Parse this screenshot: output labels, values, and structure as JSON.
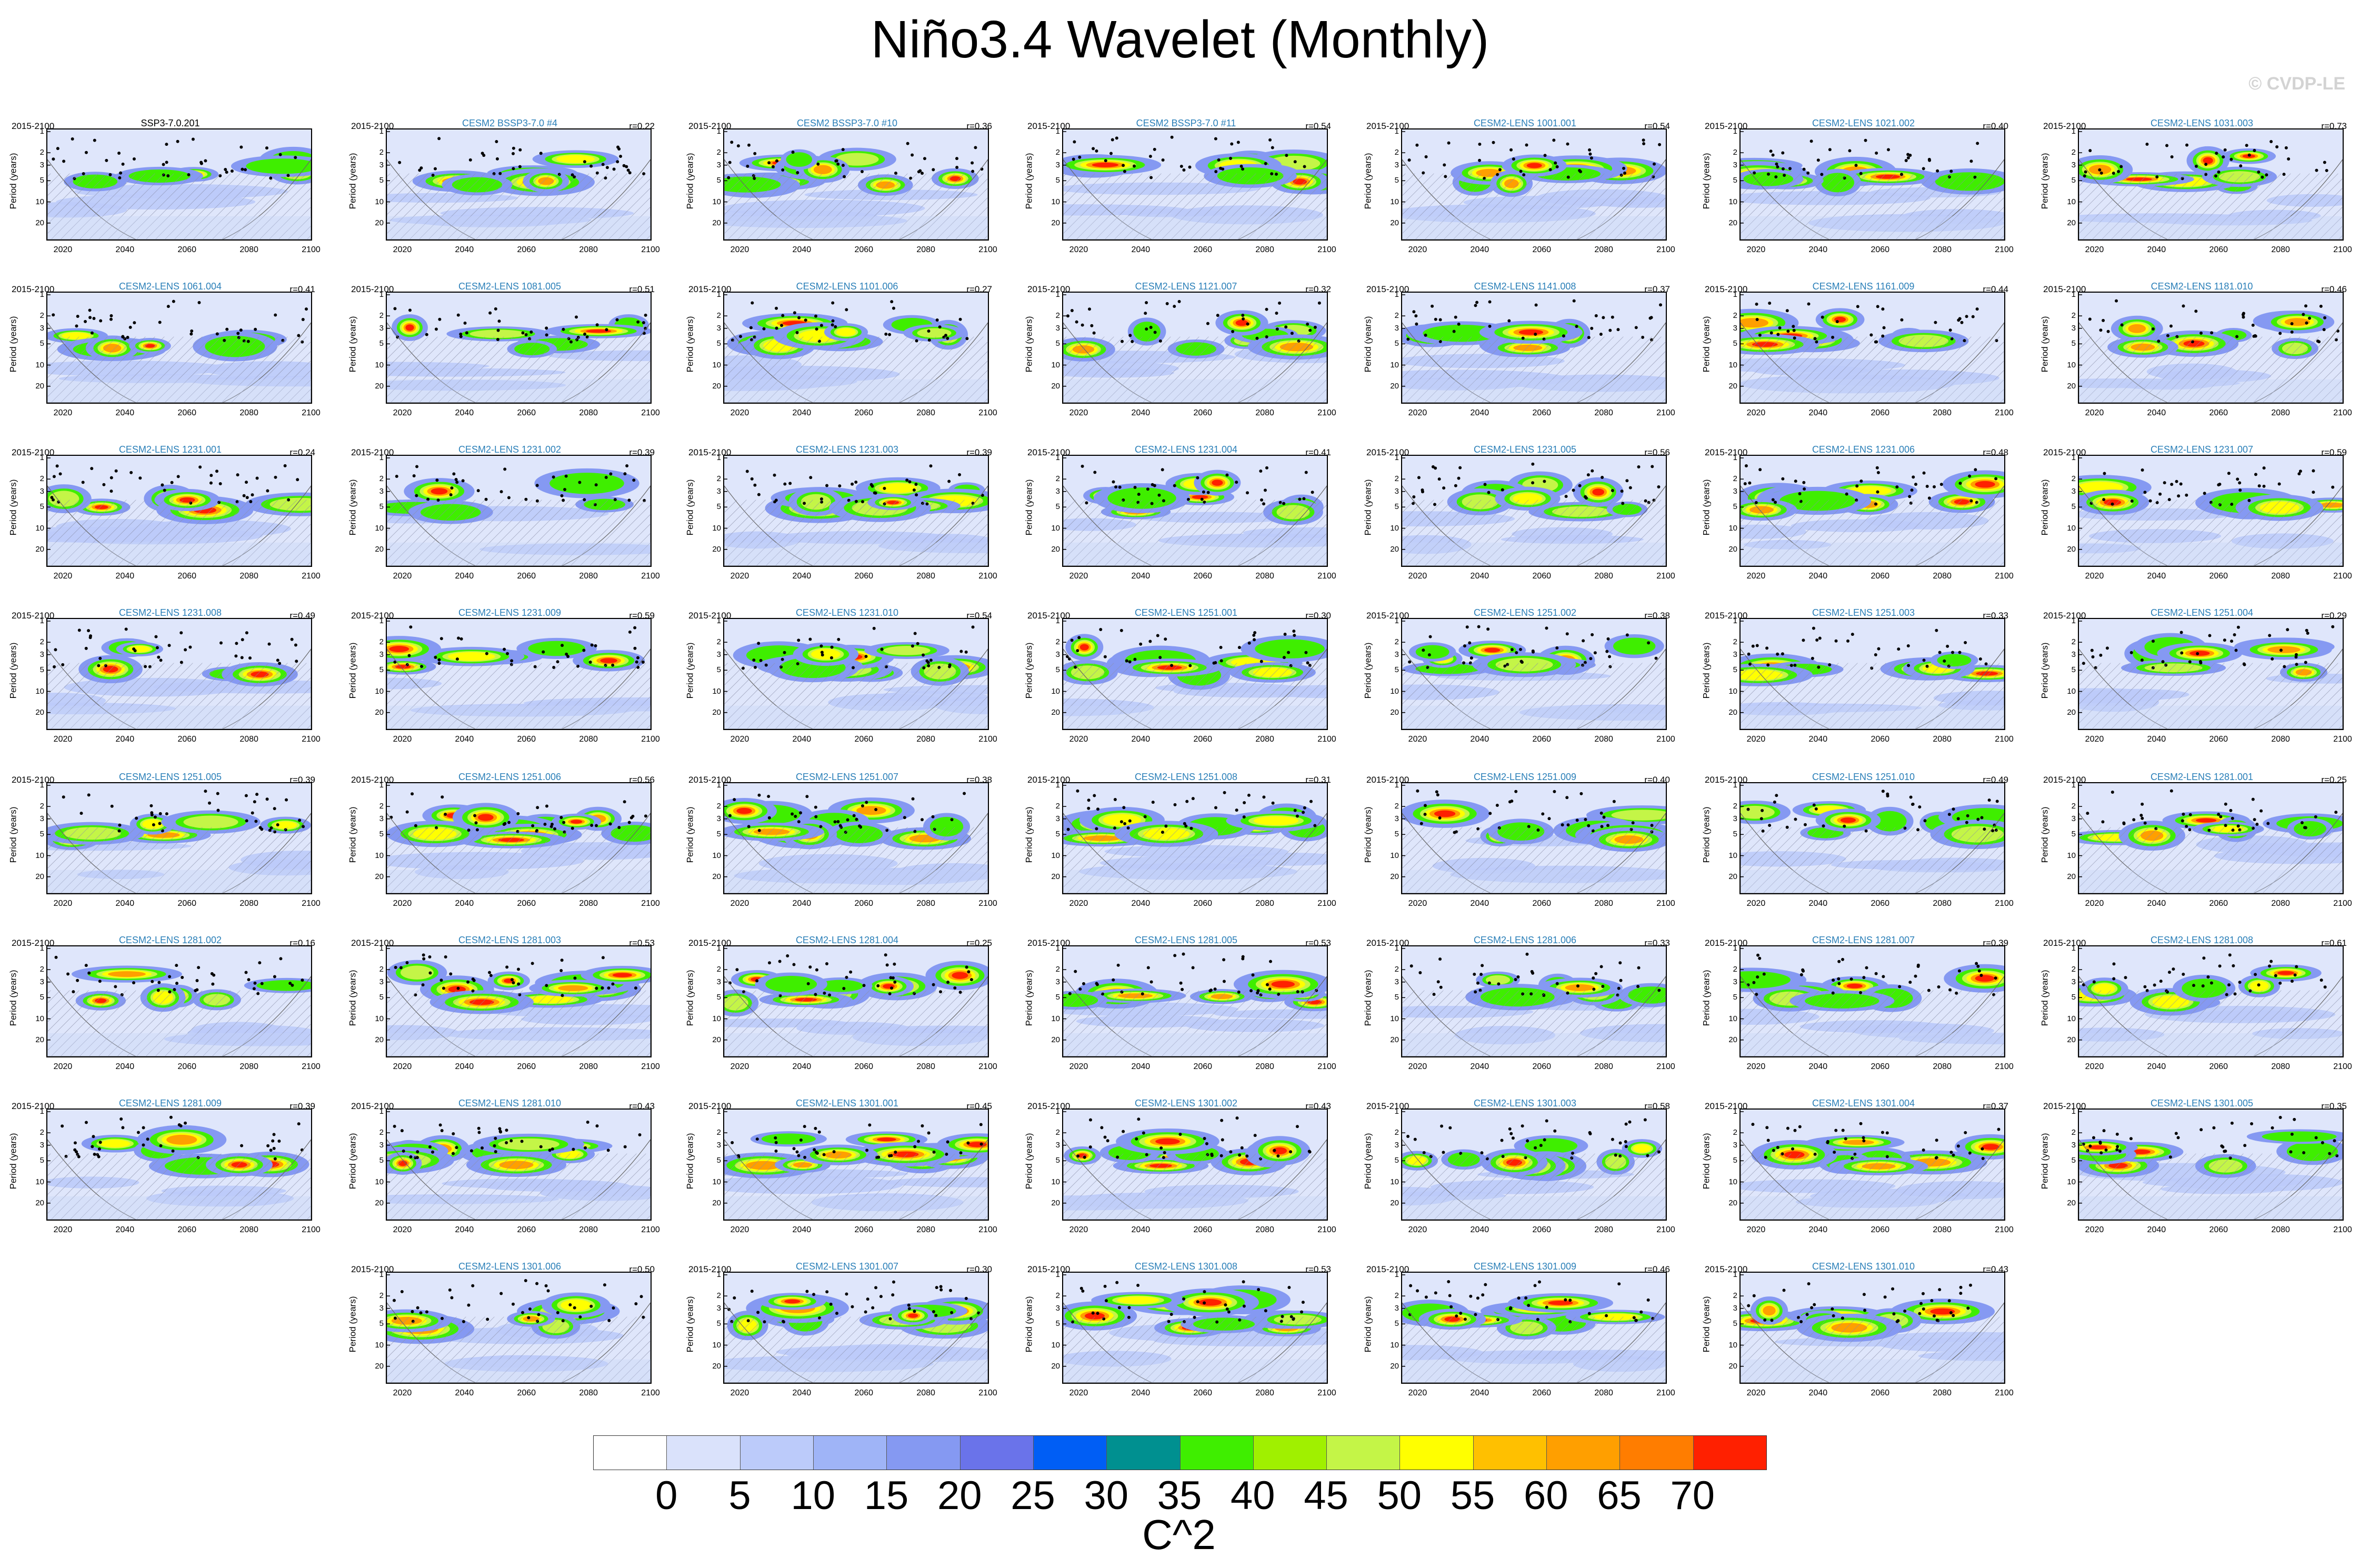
{
  "title": "Niño3.4 Wavelet (Monthly)",
  "watermark": "© CVDP-LE",
  "axis": {
    "period_label": "Period (years)",
    "y_ticks": [
      "1",
      "2",
      "3",
      "5",
      "10",
      "20"
    ],
    "x_ticks": [
      "2020",
      "2040",
      "2060",
      "2080",
      "2100"
    ]
  },
  "colorbar": {
    "title": "C^2",
    "labels": [
      "0",
      "5",
      "10",
      "15",
      "20",
      "25",
      "30",
      "35",
      "40",
      "45",
      "50",
      "55",
      "60",
      "65",
      "70"
    ],
    "colors": [
      "#ffffff",
      "#dae2fb",
      "#bccbfa",
      "#9fb4f7",
      "#8599f2",
      "#6a73ea",
      "#005ef5",
      "#009090",
      "#3fee00",
      "#a0f000",
      "#c4f547",
      "#ffff00",
      "#ffc000",
      "#ff9f00",
      "#ff7d00",
      "#ff2000"
    ]
  },
  "chart_data": {
    "type": "heatmap",
    "period": "2015-2100",
    "panels": [
      {
        "row": 0,
        "col": 0,
        "name": "SSP3-7.0.201",
        "corr": ""
      },
      {
        "row": 0,
        "col": 1,
        "name": "CESM2 BSSP3-7.0 #4",
        "corr": "r=0.22"
      },
      {
        "row": 0,
        "col": 2,
        "name": "CESM2 BSSP3-7.0 #10",
        "corr": "r=0.36"
      },
      {
        "row": 0,
        "col": 3,
        "name": "CESM2 BSSP3-7.0 #11",
        "corr": "r=0.54"
      },
      {
        "row": 0,
        "col": 4,
        "name": "CESM2-LENS 1001.001",
        "corr": "r=0.54"
      },
      {
        "row": 0,
        "col": 5,
        "name": "CESM2-LENS 1021.002",
        "corr": "r=0.40"
      },
      {
        "row": 0,
        "col": 6,
        "name": "CESM2-LENS 1031.003",
        "corr": "r=0.73"
      },
      {
        "row": 1,
        "col": 0,
        "name": "CESM2-LENS 1061.004",
        "corr": "r=0.41"
      },
      {
        "row": 1,
        "col": 1,
        "name": "CESM2-LENS 1081.005",
        "corr": "r=0.51"
      },
      {
        "row": 1,
        "col": 2,
        "name": "CESM2-LENS 1101.006",
        "corr": "r=0.27"
      },
      {
        "row": 1,
        "col": 3,
        "name": "CESM2-LENS 1121.007",
        "corr": "r=0.32"
      },
      {
        "row": 1,
        "col": 4,
        "name": "CESM2-LENS 1141.008",
        "corr": "r=0.37"
      },
      {
        "row": 1,
        "col": 5,
        "name": "CESM2-LENS 1161.009",
        "corr": "r=0.44"
      },
      {
        "row": 1,
        "col": 6,
        "name": "CESM2-LENS 1181.010",
        "corr": "r=0.46"
      },
      {
        "row": 2,
        "col": 0,
        "name": "CESM2-LENS 1231.001",
        "corr": "r=0.24"
      },
      {
        "row": 2,
        "col": 1,
        "name": "CESM2-LENS 1231.002",
        "corr": "r=0.39"
      },
      {
        "row": 2,
        "col": 2,
        "name": "CESM2-LENS 1231.003",
        "corr": "r=0.39"
      },
      {
        "row": 2,
        "col": 3,
        "name": "CESM2-LENS 1231.004",
        "corr": "r=0.41"
      },
      {
        "row": 2,
        "col": 4,
        "name": "CESM2-LENS 1231.005",
        "corr": "r=0.56"
      },
      {
        "row": 2,
        "col": 5,
        "name": "CESM2-LENS 1231.006",
        "corr": "r=0.48"
      },
      {
        "row": 2,
        "col": 6,
        "name": "CESM2-LENS 1231.007",
        "corr": "r=0.59"
      },
      {
        "row": 3,
        "col": 0,
        "name": "CESM2-LENS 1231.008",
        "corr": "r=0.49"
      },
      {
        "row": 3,
        "col": 1,
        "name": "CESM2-LENS 1231.009",
        "corr": "r=0.59"
      },
      {
        "row": 3,
        "col": 2,
        "name": "CESM2-LENS 1231.010",
        "corr": "r=0.54"
      },
      {
        "row": 3,
        "col": 3,
        "name": "CESM2-LENS 1251.001",
        "corr": "r=0.30"
      },
      {
        "row": 3,
        "col": 4,
        "name": "CESM2-LENS 1251.002",
        "corr": "r=0.38"
      },
      {
        "row": 3,
        "col": 5,
        "name": "CESM2-LENS 1251.003",
        "corr": "r=0.33"
      },
      {
        "row": 3,
        "col": 6,
        "name": "CESM2-LENS 1251.004",
        "corr": "r=0.29"
      },
      {
        "row": 4,
        "col": 0,
        "name": "CESM2-LENS 1251.005",
        "corr": "r=0.39"
      },
      {
        "row": 4,
        "col": 1,
        "name": "CESM2-LENS 1251.006",
        "corr": "r=0.56"
      },
      {
        "row": 4,
        "col": 2,
        "name": "CESM2-LENS 1251.007",
        "corr": "r=0.38"
      },
      {
        "row": 4,
        "col": 3,
        "name": "CESM2-LENS 1251.008",
        "corr": "r=0.31"
      },
      {
        "row": 4,
        "col": 4,
        "name": "CESM2-LENS 1251.009",
        "corr": "r=0.40"
      },
      {
        "row": 4,
        "col": 5,
        "name": "CESM2-LENS 1251.010",
        "corr": "r=0.49"
      },
      {
        "row": 4,
        "col": 6,
        "name": "CESM2-LENS 1281.001",
        "corr": "r=0.25"
      },
      {
        "row": 5,
        "col": 0,
        "name": "CESM2-LENS 1281.002",
        "corr": "r=0.16"
      },
      {
        "row": 5,
        "col": 1,
        "name": "CESM2-LENS 1281.003",
        "corr": "r=0.53"
      },
      {
        "row": 5,
        "col": 2,
        "name": "CESM2-LENS 1281.004",
        "corr": "r=0.25"
      },
      {
        "row": 5,
        "col": 3,
        "name": "CESM2-LENS 1281.005",
        "corr": "r=0.53"
      },
      {
        "row": 5,
        "col": 4,
        "name": "CESM2-LENS 1281.006",
        "corr": "r=0.33"
      },
      {
        "row": 5,
        "col": 5,
        "name": "CESM2-LENS 1281.007",
        "corr": "r=0.39"
      },
      {
        "row": 5,
        "col": 6,
        "name": "CESM2-LENS 1281.008",
        "corr": "r=0.61"
      },
      {
        "row": 6,
        "col": 0,
        "name": "CESM2-LENS 1281.009",
        "corr": "r=0.39"
      },
      {
        "row": 6,
        "col": 1,
        "name": "CESM2-LENS 1281.010",
        "corr": "r=0.43"
      },
      {
        "row": 6,
        "col": 2,
        "name": "CESM2-LENS 1301.001",
        "corr": "r=0.45"
      },
      {
        "row": 6,
        "col": 3,
        "name": "CESM2-LENS 1301.002",
        "corr": "r=0.43"
      },
      {
        "row": 6,
        "col": 4,
        "name": "CESM2-LENS 1301.003",
        "corr": "r=0.58"
      },
      {
        "row": 6,
        "col": 5,
        "name": "CESM2-LENS 1301.004",
        "corr": "r=0.37"
      },
      {
        "row": 6,
        "col": 6,
        "name": "CESM2-LENS 1301.005",
        "corr": "r=0.35"
      },
      {
        "row": 7,
        "col": 1,
        "name": "CESM2-LENS 1301.006",
        "corr": "r=0.50"
      },
      {
        "row": 7,
        "col": 2,
        "name": "CESM2-LENS 1301.007",
        "corr": "r=0.30"
      },
      {
        "row": 7,
        "col": 3,
        "name": "CESM2-LENS 1301.008",
        "corr": "r=0.53"
      },
      {
        "row": 7,
        "col": 4,
        "name": "CESM2-LENS 1301.009",
        "corr": "r=0.46"
      },
      {
        "row": 7,
        "col": 5,
        "name": "CESM2-LENS 1301.010",
        "corr": "r=0.43"
      }
    ]
  }
}
